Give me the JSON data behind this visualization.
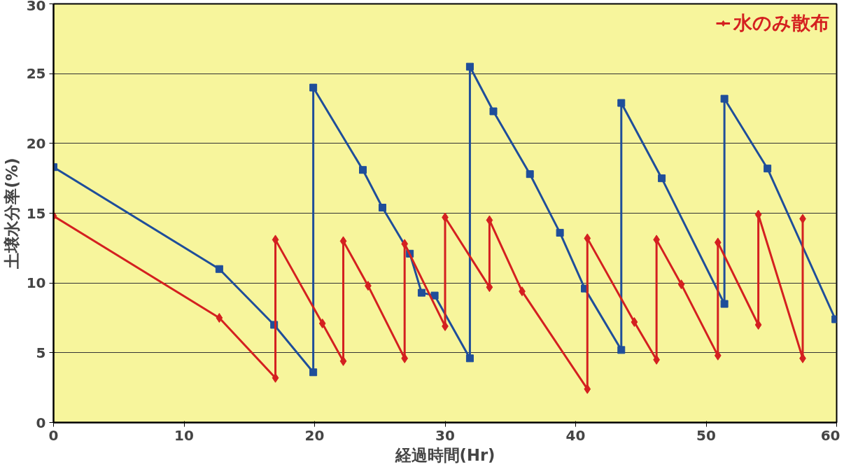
{
  "chart_data": {
    "type": "line",
    "xlabel": "経過時間(Hr)",
    "ylabel": "土壌水分率(%)",
    "xlim": [
      0,
      60
    ],
    "ylim": [
      0,
      30
    ],
    "xticks": [
      0,
      10,
      20,
      30,
      40,
      50,
      60
    ],
    "yticks": [
      0,
      5,
      10,
      15,
      20,
      25,
      30
    ],
    "grid": "y",
    "legend": "top right",
    "line_style": "solid",
    "series": [
      {
        "color": "#1f4e9a",
        "marker": "square",
        "x": [
          0,
          12.7,
          16.9,
          19.9,
          19.9,
          23.7,
          25.2,
          27.3,
          28.2,
          29.2,
          31.9,
          31.9,
          33.7,
          36.5,
          38.8,
          40.7,
          43.5,
          43.5,
          46.6,
          51.4,
          51.4,
          54.7,
          59.9
        ],
        "values": [
          18.3,
          11,
          7,
          3.6,
          24,
          18.1,
          15.4,
          12.1,
          9.3,
          9.1,
          4.6,
          25.5,
          22.3,
          17.8,
          13.6,
          9.6,
          5.2,
          22.9,
          17.5,
          8.5,
          23.2,
          18.2,
          7.4
        ]
      },
      {
        "name": "水のみ散布",
        "color": "#d42020",
        "marker": "diamond",
        "x": [
          0,
          12.7,
          17,
          17,
          20.6,
          22.2,
          22.2,
          24.1,
          26.9,
          26.9,
          30,
          30,
          33.4,
          33.4,
          35.9,
          40.9,
          40.9,
          44.5,
          46.2,
          46.2,
          48.1,
          50.9,
          50.9,
          54,
          54,
          57.4,
          57.4
        ],
        "values": [
          14.8,
          7.5,
          3.2,
          13.1,
          7.1,
          4.4,
          13,
          9.8,
          4.6,
          12.8,
          6.9,
          14.7,
          9.7,
          14.5,
          9.4,
          2.4,
          13.2,
          7.2,
          4.5,
          13.1,
          9.9,
          4.8,
          12.9,
          7,
          14.9,
          4.6,
          14.6
        ]
      }
    ]
  }
}
